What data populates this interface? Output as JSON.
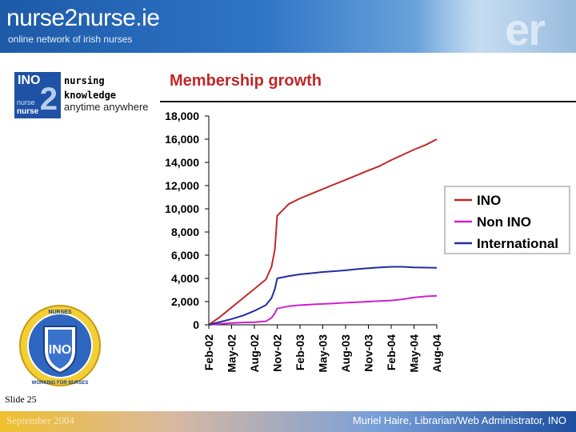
{
  "header": {
    "site_title": "nurse2nurse.ie",
    "site_subtitle": "online network of irish nurses"
  },
  "logo": {
    "ino": "INO",
    "two": "2",
    "nurse_top": "nurse",
    "nurse_bottom": "nurse",
    "nursing": "nursing",
    "knowledge": "knowledge",
    "tagline": "anytime anywhere"
  },
  "badge": {
    "top_text": "NURSES",
    "center_text": "INO",
    "bottom_text": "WORKING FOR NURSES"
  },
  "slide_label": "Slide 25",
  "footer": {
    "date": "September 2004",
    "author": "Muriel Haire, Librarian/Web Administrator, INO"
  },
  "colors": {
    "ino": "#c0282a",
    "non_ino": "#cc22cc",
    "international": "#1f2f9e",
    "title": "#c0282a"
  },
  "chart_data": {
    "type": "line",
    "title": "Membership growth",
    "categories": [
      "Feb-02",
      "May-02",
      "Aug-02",
      "Nov-02",
      "Feb-03",
      "May-03",
      "Aug-03",
      "Nov-03",
      "Feb-04",
      "May-04",
      "Aug-04"
    ],
    "x": [
      0,
      0.5,
      1,
      1.5,
      2,
      2.5,
      2.75,
      2.9,
      3,
      3.5,
      4,
      4.5,
      5,
      5.5,
      6,
      6.5,
      7,
      7.5,
      8,
      8.5,
      9,
      9.5,
      10
    ],
    "ylim": [
      0,
      18000
    ],
    "yticks": [
      "0",
      "2,000",
      "4,000",
      "6,000",
      "8,000",
      "10,000",
      "12,000",
      "14,000",
      "16,000",
      "18,000"
    ],
    "ytick_values": [
      0,
      2000,
      4000,
      6000,
      8000,
      10000,
      12000,
      14000,
      16000,
      18000
    ],
    "grid": false,
    "legend_position": "right",
    "series": [
      {
        "name": "INO",
        "values": [
          0,
          700,
          1500,
          2300,
          3100,
          3900,
          5000,
          6500,
          9400,
          10400,
          10900,
          11300,
          11700,
          12100,
          12500,
          12900,
          13300,
          13700,
          14200,
          14650,
          15100,
          15500,
          16000
        ]
      },
      {
        "name": "Non INO",
        "values": [
          0,
          80,
          150,
          200,
          230,
          300,
          600,
          1000,
          1400,
          1600,
          1700,
          1750,
          1800,
          1850,
          1900,
          1950,
          2000,
          2050,
          2100,
          2200,
          2350,
          2450,
          2500
        ]
      },
      {
        "name": "International",
        "values": [
          0,
          250,
          500,
          800,
          1200,
          1700,
          2300,
          3100,
          4000,
          4200,
          4350,
          4450,
          4550,
          4620,
          4700,
          4800,
          4880,
          4950,
          5000,
          5000,
          4950,
          4930,
          4920
        ]
      }
    ]
  }
}
